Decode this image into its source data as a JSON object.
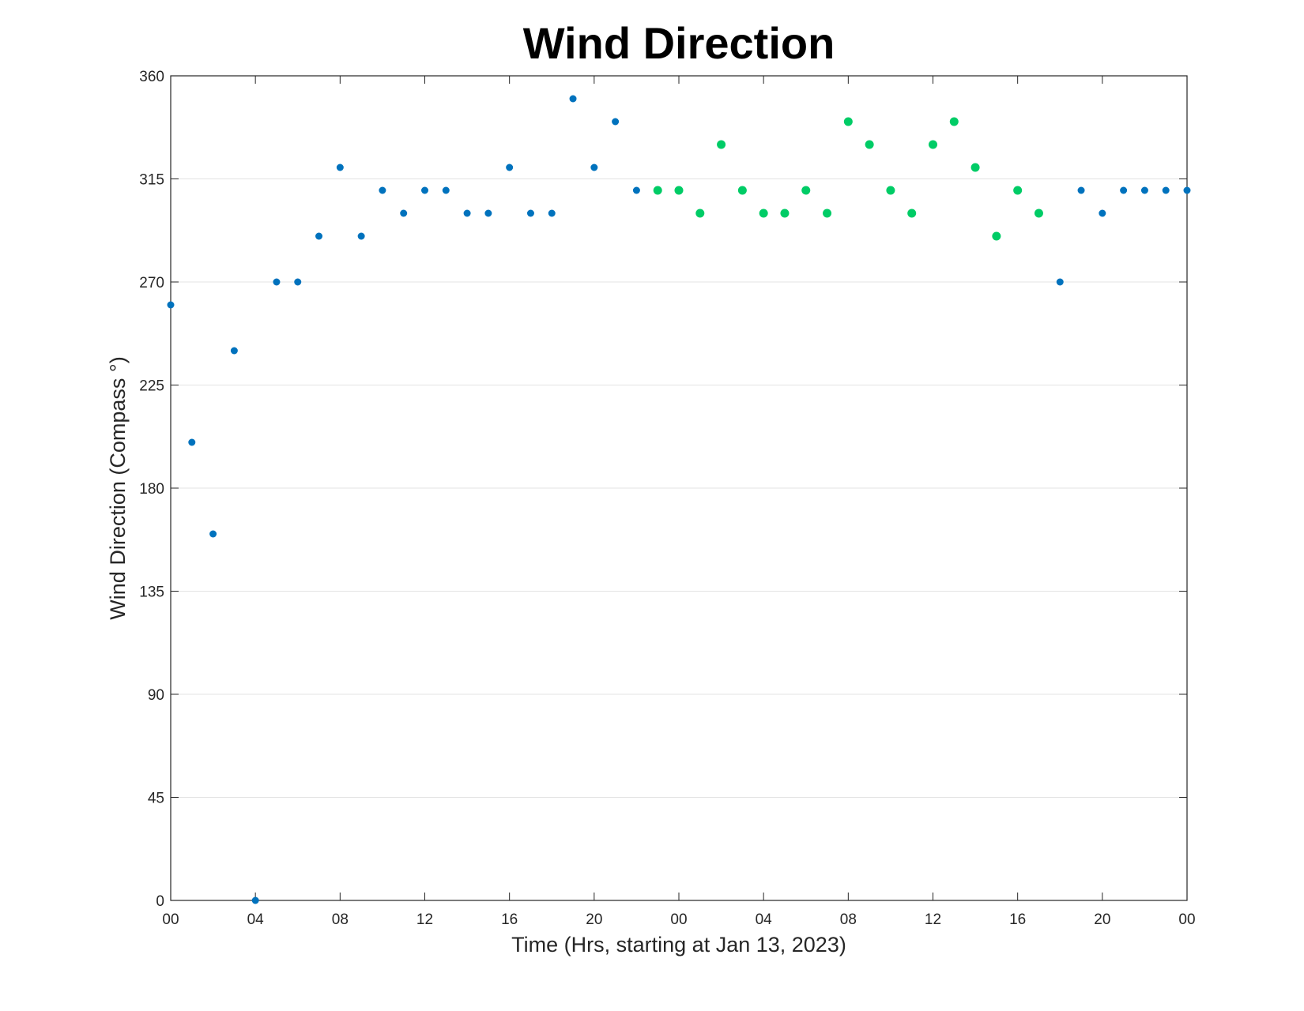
{
  "chart_data": {
    "type": "scatter",
    "title": "Wind Direction",
    "xlabel": "Time (Hrs, starting at Jan 13, 2023)",
    "ylabel": "Wind Direction (Compass °)",
    "x_unit": "hours",
    "xlim": [
      0,
      48
    ],
    "ylim": [
      0,
      360
    ],
    "x_ticks": [
      0,
      4,
      8,
      12,
      16,
      20,
      24,
      28,
      32,
      36,
      40,
      44,
      48
    ],
    "x_tick_labels": [
      "00",
      "04",
      "08",
      "12",
      "16",
      "20",
      "00",
      "04",
      "08",
      "12",
      "16",
      "20",
      "00"
    ],
    "y_ticks": [
      0,
      45,
      90,
      135,
      180,
      225,
      270,
      315,
      360
    ],
    "y_tick_labels": [
      "0",
      "45",
      "90",
      "135",
      "180",
      "225",
      "270",
      "315",
      "360"
    ],
    "grid": "horizontal",
    "series": [
      {
        "color": "#0072BD",
        "points": [
          [
            0,
            260
          ],
          [
            1,
            200
          ],
          [
            2,
            160
          ],
          [
            3,
            240
          ],
          [
            4,
            0
          ],
          [
            5,
            270
          ],
          [
            6,
            270
          ],
          [
            7,
            290
          ],
          [
            8,
            320
          ],
          [
            9,
            290
          ],
          [
            10,
            310
          ],
          [
            11,
            300
          ],
          [
            12,
            310
          ],
          [
            13,
            310
          ],
          [
            14,
            300
          ],
          [
            15,
            300
          ],
          [
            16,
            320
          ],
          [
            17,
            300
          ],
          [
            18,
            300
          ],
          [
            19,
            350
          ],
          [
            20,
            320
          ],
          [
            21,
            340
          ],
          [
            22,
            310
          ],
          [
            42,
            270
          ],
          [
            43,
            310
          ],
          [
            44,
            300
          ],
          [
            45,
            310
          ],
          [
            46,
            310
          ],
          [
            47,
            310
          ],
          [
            48,
            310
          ]
        ]
      },
      {
        "color": "#00CC66",
        "points": [
          [
            23,
            310
          ],
          [
            24,
            310
          ],
          [
            25,
            300
          ],
          [
            26,
            330
          ],
          [
            27,
            310
          ],
          [
            28,
            300
          ],
          [
            29,
            300
          ],
          [
            30,
            310
          ],
          [
            31,
            300
          ],
          [
            32,
            340
          ],
          [
            33,
            330
          ],
          [
            34,
            310
          ],
          [
            35,
            300
          ],
          [
            36,
            330
          ],
          [
            37,
            340
          ],
          [
            38,
            320
          ],
          [
            39,
            290
          ],
          [
            40,
            310
          ],
          [
            41,
            300
          ]
        ]
      }
    ]
  }
}
